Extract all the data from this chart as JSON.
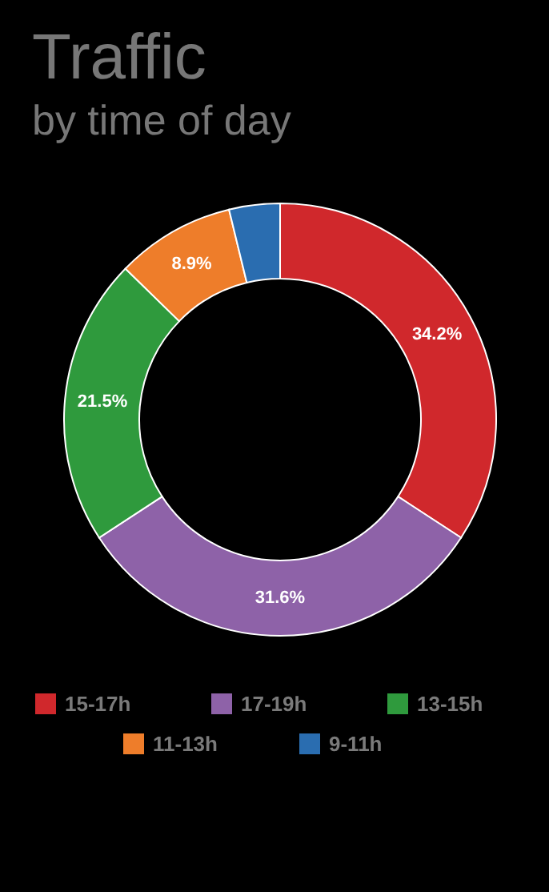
{
  "chart_data": {
    "type": "donut",
    "title": "Traffic",
    "subtitle": "by time of day",
    "categories": [
      "15-17h",
      "17-19h",
      "13-15h",
      "11-13h",
      "9-11h"
    ],
    "values": [
      34.2,
      31.6,
      21.5,
      8.9,
      3.8
    ],
    "colors": [
      "#d0282c",
      "#8e62a8",
      "#2f9a3d",
      "#ee7d2a",
      "#2a6db0"
    ],
    "value_labels": [
      "34.2%",
      "31.6%",
      "21.5%",
      "8.9%",
      null
    ],
    "legend": "bottom"
  }
}
